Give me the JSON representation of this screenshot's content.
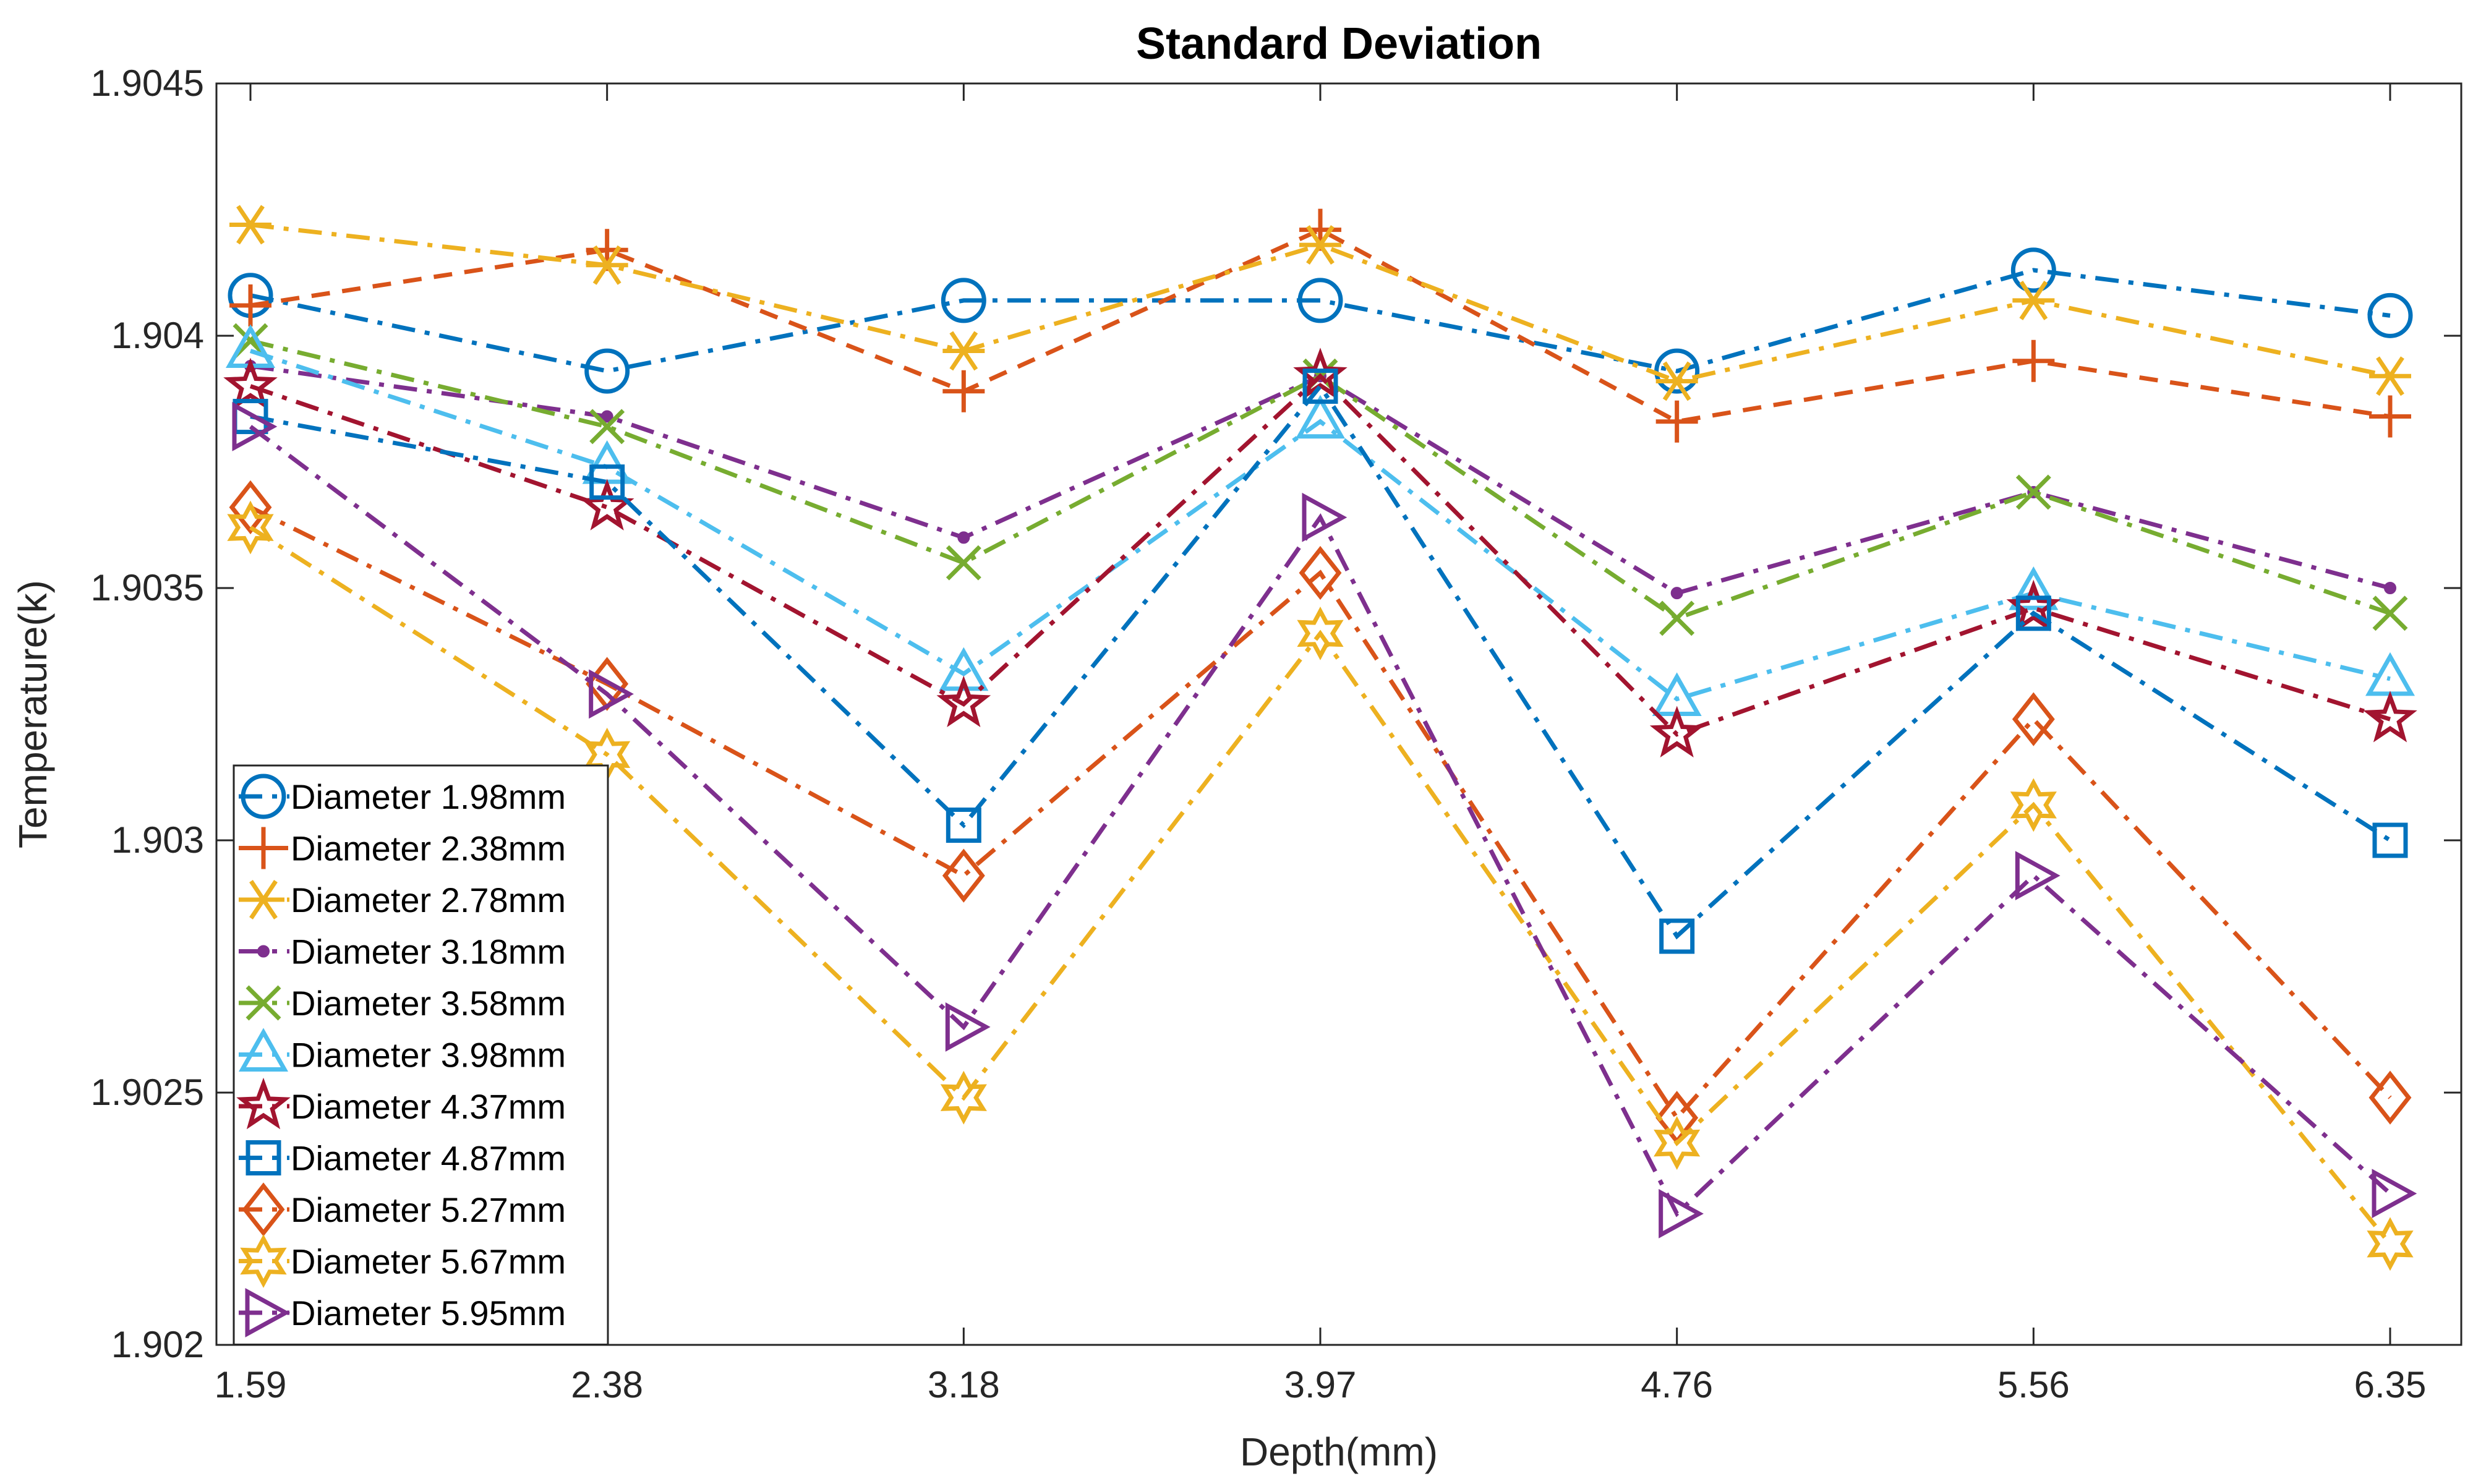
{
  "chart_data": {
    "type": "line",
    "title": "Standard Deviation",
    "xlabel": "Depth(mm)",
    "ylabel": "Temperature(k)",
    "categories": [
      "1.59",
      "2.38",
      "3.18",
      "3.97",
      "4.76",
      "5.56",
      "6.35"
    ],
    "yticks": [
      "1.902",
      "1.9025",
      "1.903",
      "1.9035",
      "1.904",
      "1.9045"
    ],
    "ylim": [
      1.902,
      1.9045
    ],
    "grid": false,
    "legend_position": "bottom-left",
    "series": [
      {
        "name": "Diameter 1.98mm",
        "color": "#0072BD",
        "marker": "circle",
        "dash": "dashdot",
        "values": [
          1.90408,
          1.90393,
          1.90407,
          1.90407,
          1.90393,
          1.90413,
          1.90404
        ]
      },
      {
        "name": "Diameter 2.38mm",
        "color": "#D95319",
        "marker": "plus",
        "dash": "dash",
        "values": [
          1.90406,
          1.90417,
          1.90389,
          1.90421,
          1.90383,
          1.90395,
          1.90384
        ]
      },
      {
        "name": "Diameter 2.78mm",
        "color": "#EDB120",
        "marker": "asterisk",
        "dash": "dashdot",
        "values": [
          1.90422,
          1.90414,
          1.90397,
          1.90418,
          1.90391,
          1.90407,
          1.90392
        ]
      },
      {
        "name": "Diameter 3.18mm",
        "color": "#7E2F8E",
        "marker": "dot",
        "dash": "dashdot",
        "values": [
          1.90394,
          1.90384,
          1.9036,
          1.90392,
          1.90349,
          1.90369,
          1.9035
        ]
      },
      {
        "name": "Diameter 3.58mm",
        "color": "#77AC30",
        "marker": "x",
        "dash": "dashdot",
        "values": [
          1.90399,
          1.90382,
          1.90355,
          1.90392,
          1.90344,
          1.90369,
          1.90345
        ]
      },
      {
        "name": "Diameter 3.98mm",
        "color": "#4DBEEE",
        "marker": "triangle-up",
        "dash": "dashdot",
        "values": [
          1.90397,
          1.90374,
          1.90333,
          1.90383,
          1.90328,
          1.90349,
          1.90332
        ]
      },
      {
        "name": "Diameter 4.37mm",
        "color": "#A2142F",
        "marker": "pentagram",
        "dash": "dashdot",
        "values": [
          1.9039,
          1.90366,
          1.90327,
          1.90392,
          1.90321,
          1.90346,
          1.90324
        ]
      },
      {
        "name": "Diameter 4.87mm",
        "color": "#0072BD",
        "marker": "square",
        "dash": "dashdot",
        "values": [
          1.90384,
          1.90371,
          1.90303,
          1.9039,
          1.90281,
          1.90345,
          1.903
        ]
      },
      {
        "name": "Diameter 5.27mm",
        "color": "#D95319",
        "marker": "diamond",
        "dash": "dashdot",
        "values": [
          1.90366,
          1.90331,
          1.90293,
          1.90353,
          1.90245,
          1.90324,
          1.90249
        ]
      },
      {
        "name": "Diameter 5.67mm",
        "color": "#EDB120",
        "marker": "hexagram",
        "dash": "dashdot",
        "values": [
          1.90362,
          1.90317,
          1.90249,
          1.90341,
          1.9024,
          1.90307,
          1.9022
        ]
      },
      {
        "name": "Diameter 5.95mm",
        "color": "#7E2F8E",
        "marker": "triangle-right",
        "dash": "dashdot",
        "values": [
          1.90382,
          1.90329,
          1.90263,
          1.90364,
          1.90226,
          1.90293,
          1.9023
        ]
      }
    ]
  }
}
